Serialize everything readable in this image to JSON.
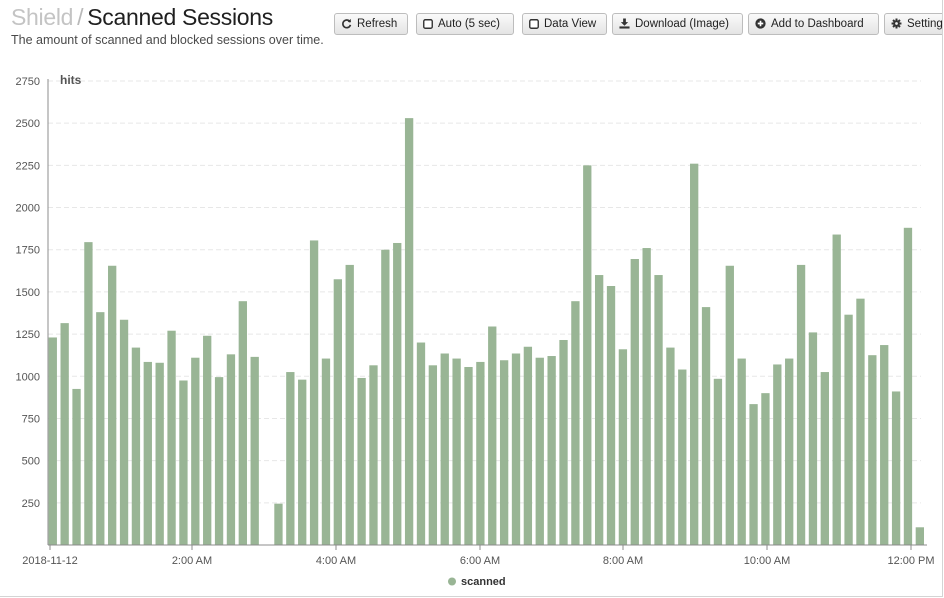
{
  "header": {
    "breadcrumb_parent": "Shield",
    "separator": "/",
    "title": "Scanned Sessions",
    "subtitle": "The amount of scanned and blocked sessions over time."
  },
  "toolbar": {
    "refresh": "Refresh",
    "auto": "Auto (5 sec)",
    "data_view": "Data View",
    "download": "Download (Image)",
    "add_dashboard": "Add to Dashboard",
    "settings": "Settings"
  },
  "chart_data": {
    "type": "bar",
    "ylabel": "hits",
    "ylim": [
      0,
      2750
    ],
    "yticks": [
      250,
      500,
      750,
      1000,
      1250,
      1500,
      1750,
      2000,
      2250,
      2500,
      2750
    ],
    "xtick_labels": [
      "2018-11-12",
      "2:00 AM",
      "4:00 AM",
      "6:00 AM",
      "8:00 AM",
      "10:00 AM",
      "12:00 PM"
    ],
    "grid": true,
    "legend_position": "bottom",
    "color": "#99b595",
    "series": [
      {
        "name": "scanned",
        "values": [
          1230,
          1315,
          925,
          1795,
          1380,
          1655,
          1335,
          1170,
          1085,
          1080,
          1270,
          975,
          1110,
          1240,
          995,
          1130,
          1445,
          1115,
          0,
          245,
          1025,
          980,
          1805,
          1105,
          1575,
          1660,
          990,
          1065,
          1750,
          1790,
          2530,
          1200,
          1065,
          1135,
          1105,
          1055,
          1085,
          1295,
          1095,
          1135,
          1175,
          1110,
          1120,
          1215,
          1445,
          2250,
          1600,
          1535,
          1160,
          1695,
          1760,
          1600,
          1170,
          1040,
          2260,
          1410,
          985,
          1655,
          1105,
          835,
          900,
          1070,
          1105,
          1660,
          1260,
          1025,
          1840,
          1365,
          1460,
          1125,
          1185,
          910,
          1880,
          105
        ]
      }
    ]
  }
}
